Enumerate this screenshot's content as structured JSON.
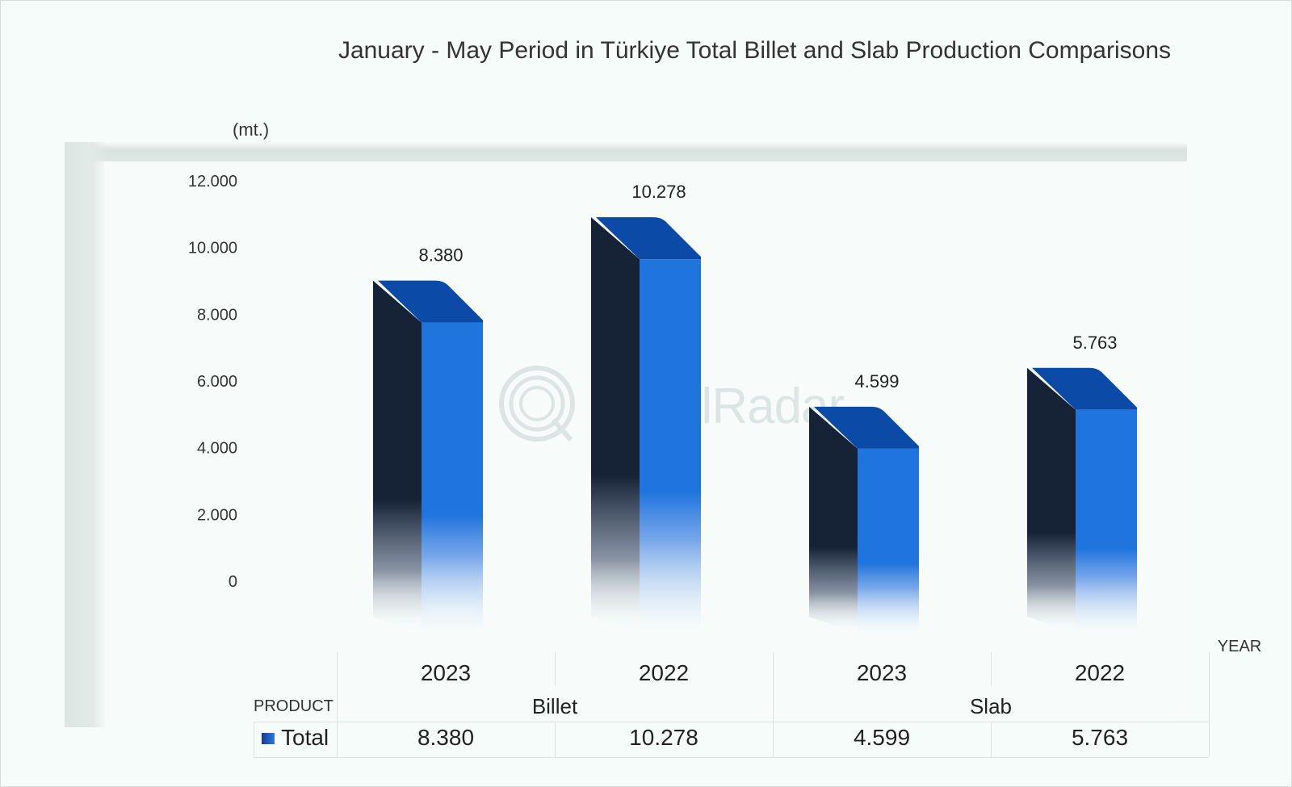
{
  "chart_data": {
    "type": "bar",
    "title": "January - May Period in Türkiye Total Billet and Slab Production Comparisons",
    "ylabel": "(mt.)",
    "xlabel": "YEAR",
    "ylim": [
      0,
      12000
    ],
    "y_ticks": [
      "12.000",
      "10.000",
      "8.000",
      "6.000",
      "4.000",
      "2.000",
      "0"
    ],
    "y_tick_values": [
      12000,
      10000,
      8000,
      6000,
      4000,
      2000,
      0
    ],
    "categories": [
      "2023",
      "2022",
      "2023",
      "2022"
    ],
    "groups": [
      "Billet",
      "Slab"
    ],
    "group_header": "PRODUCT",
    "series": [
      {
        "name": "Total",
        "values": [
          8380,
          10278,
          4599,
          5763
        ],
        "labels": [
          "8.380",
          "10.278",
          "4.599",
          "5.763"
        ]
      }
    ],
    "colors": {
      "front": "#1f74dd",
      "side": "#162236",
      "top": "#0c4aa8"
    },
    "grid": false,
    "legend": "bottom-left",
    "watermark": "SteelRadar"
  }
}
